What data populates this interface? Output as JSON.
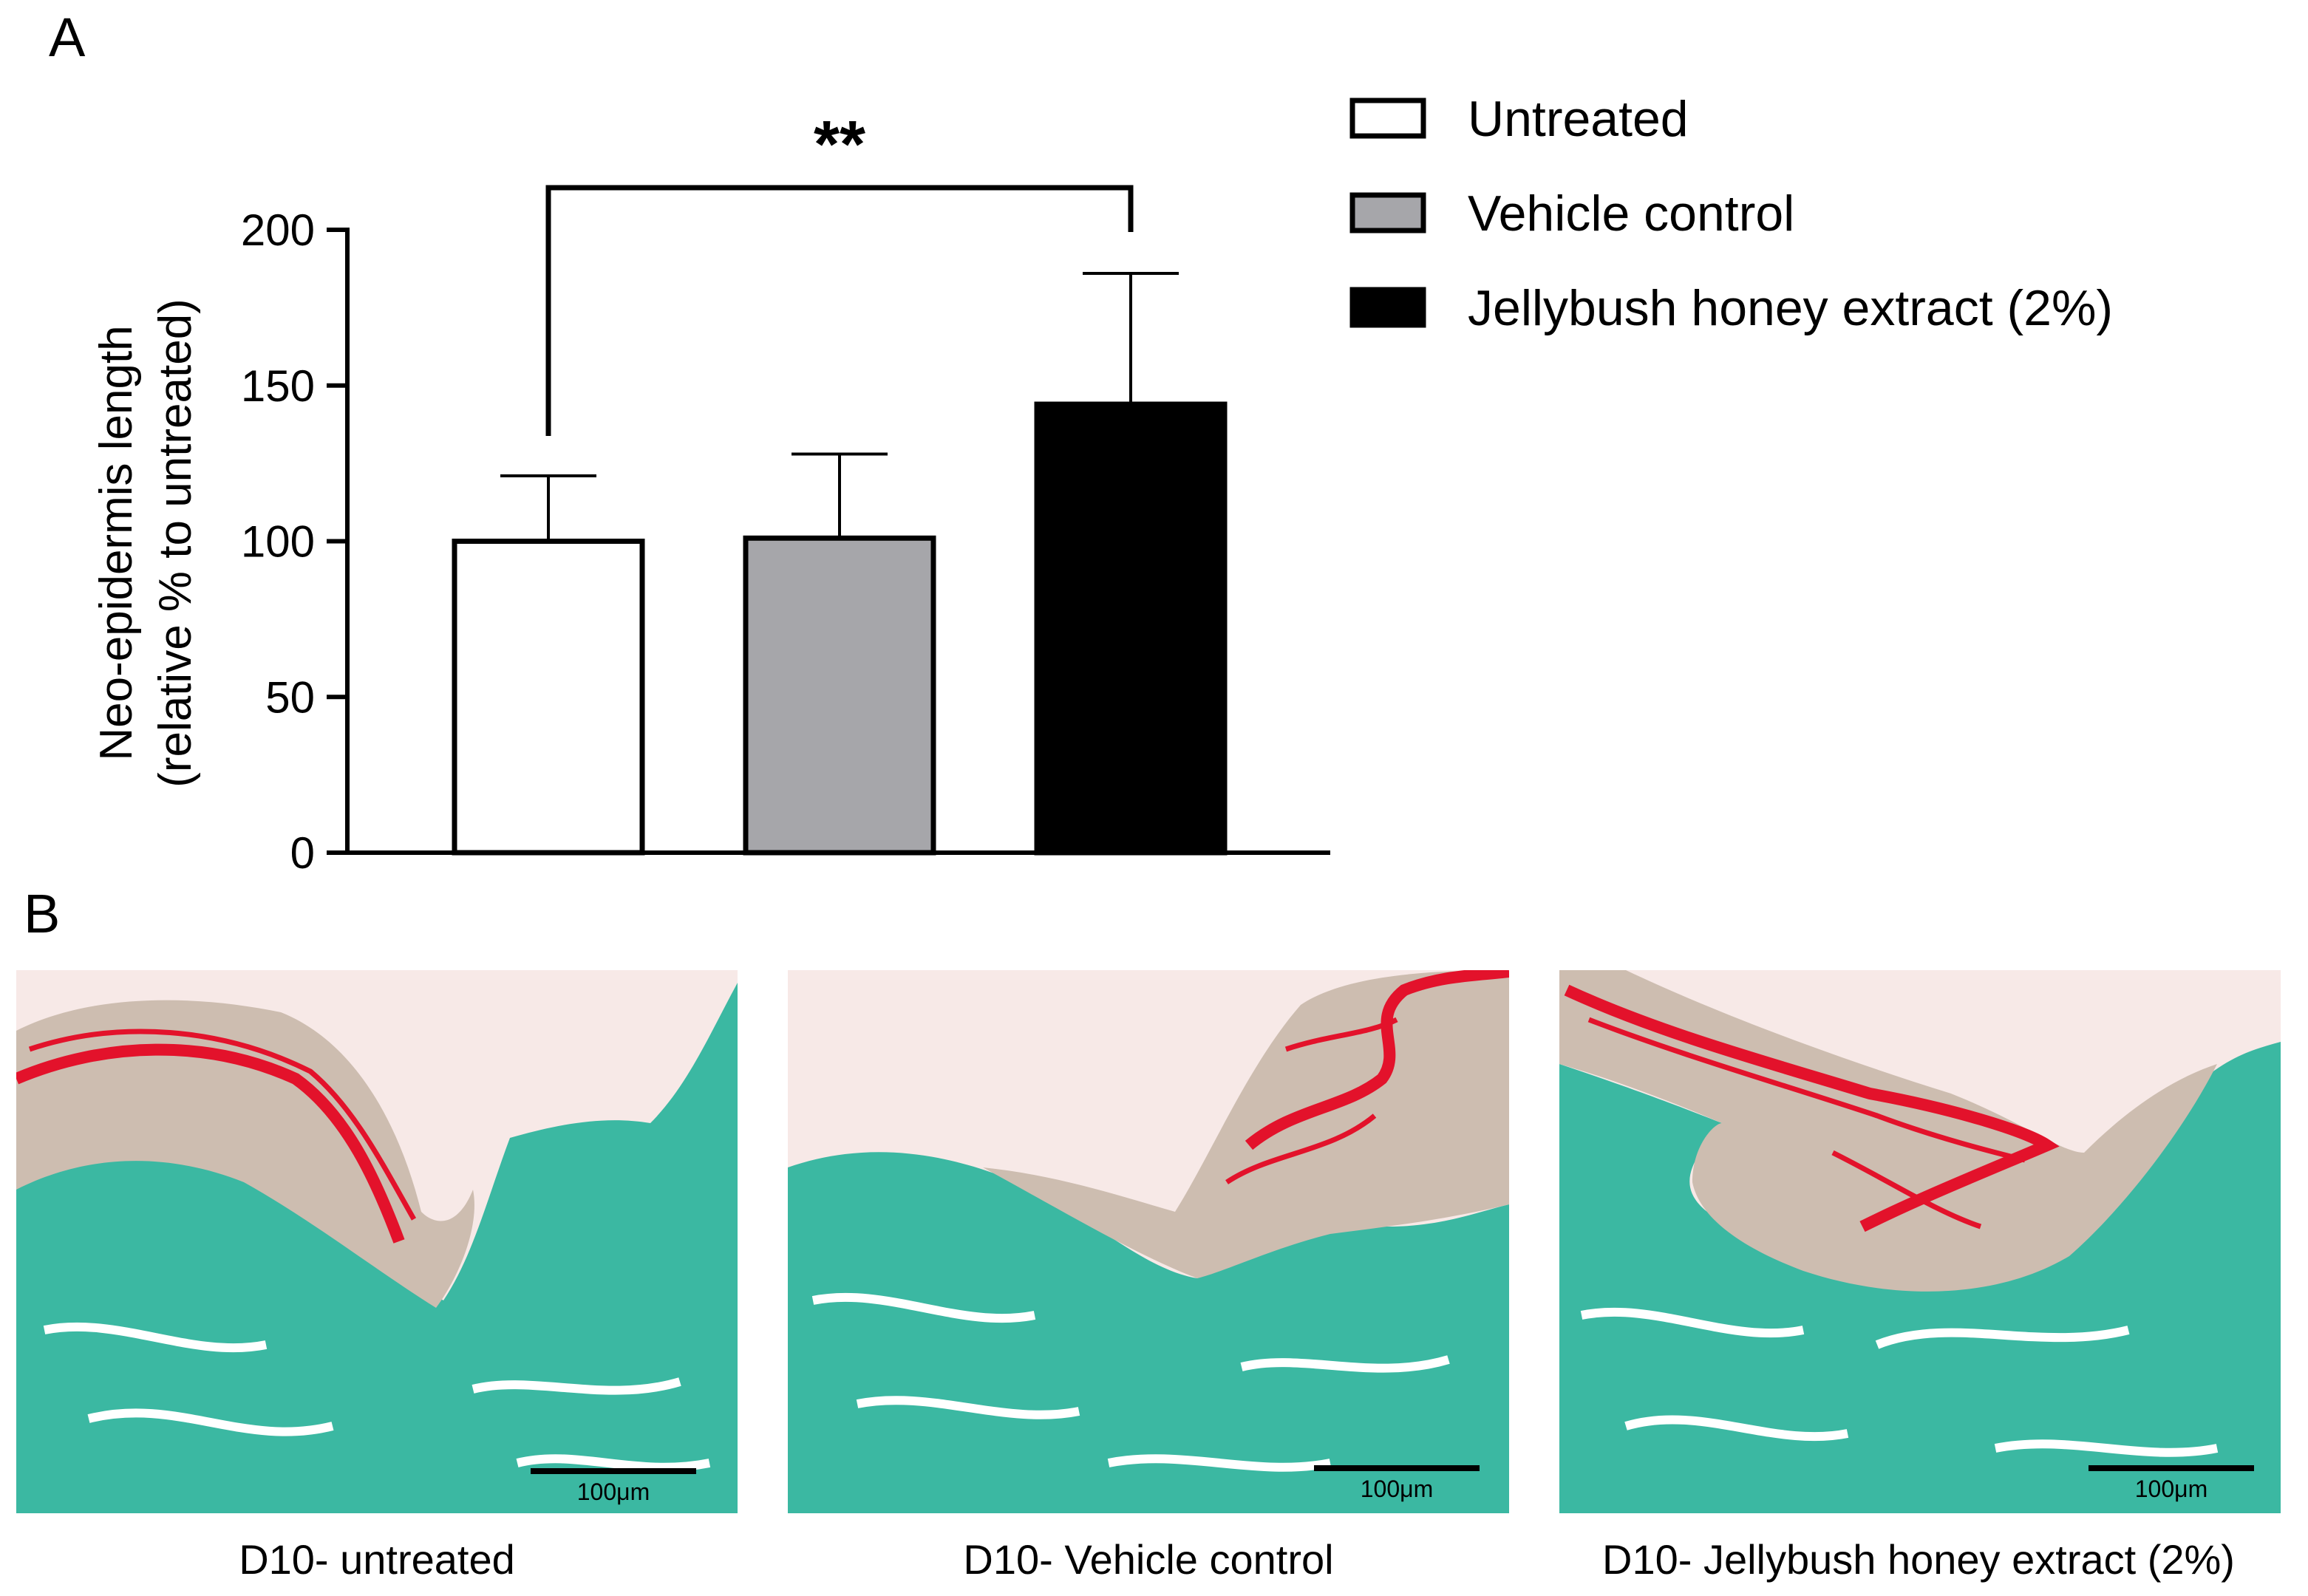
{
  "panels": {
    "a_label": "A",
    "b_label": "B"
  },
  "chart_data": {
    "type": "bar",
    "title": "",
    "xlabel": "",
    "ylabel_line1": "Neo-epidermis length",
    "ylabel_line2": "(relative % to untreated)",
    "ylim": [
      0,
      200
    ],
    "yticks": [
      0,
      50,
      100,
      150,
      200
    ],
    "grid": false,
    "legend_placement": "top-right",
    "categories": [
      "Untreated",
      "Vehicle control",
      "Jellybush honey extract (2%)"
    ],
    "values": [
      100,
      101,
      144
    ],
    "error_upper": [
      21,
      27,
      42
    ],
    "colors": [
      "#ffffff",
      "#a6a6aa",
      "#000000"
    ],
    "significance": {
      "from": 0,
      "to": 2,
      "label": "**"
    }
  },
  "micrographs": [
    {
      "caption": "D10- untreated",
      "scale_bar": "100μm"
    },
    {
      "caption": "D10- Vehicle control",
      "scale_bar": "100μm"
    },
    {
      "caption": "D10- Jellybush honey extract (2%)",
      "scale_bar": "100μm"
    }
  ],
  "stain_colors": {
    "collagen": "#3bb8a2",
    "keratin": "#e3122b",
    "epidermis": "#cdbdb0",
    "background": "#f7e9e7"
  }
}
